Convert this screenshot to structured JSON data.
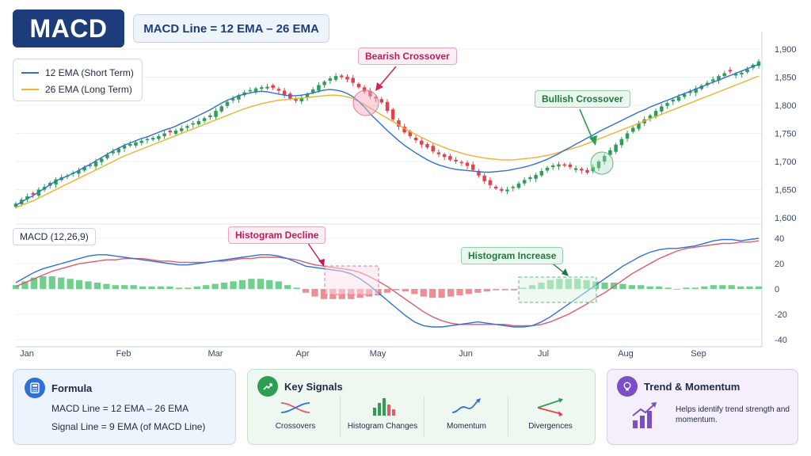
{
  "header": {
    "title": "MACD",
    "formula": "MACD Line = 12 EMA  –  26 EMA"
  },
  "legend": {
    "items": [
      {
        "label": "12 EMA (Short Term)",
        "color": "#2f6fd6"
      },
      {
        "label": "26 EMA (Long Term)",
        "color": "#f0b030"
      }
    ]
  },
  "annotations": {
    "bearish": "Bearish Crossover",
    "bullish": "Bullish Crossover",
    "hist_decline": "Histogram Decline",
    "hist_increase": "Histogram Increase"
  },
  "macd_panel": {
    "label": "MACD (12,26,9)"
  },
  "colors": {
    "up": "#2e9e55",
    "down": "#e0434f",
    "ema12": "#2f6fd6",
    "ema26": "#f0b030",
    "macd": "#2f6fd6",
    "signal": "#e05a6a",
    "hist_up": "#6fcf8c",
    "hist_down": "#ef8d95"
  },
  "chart_data": [
    {
      "type": "candlestick",
      "x_ticks": [
        "Jan",
        "Feb",
        "Mar",
        "Apr",
        "May",
        "Jun",
        "Jul",
        "Aug",
        "Sep"
      ],
      "y_ticks": [
        "1,900",
        "1,850",
        "1,800",
        "1,750",
        "1,700",
        "1,650",
        "1,600"
      ],
      "ylim": [
        1600,
        1900
      ],
      "close": [
        1625,
        1632,
        1638,
        1641,
        1650,
        1655,
        1662,
        1668,
        1672,
        1675,
        1680,
        1684,
        1690,
        1694,
        1700,
        1705,
        1712,
        1718,
        1723,
        1728,
        1731,
        1734,
        1737,
        1740,
        1742,
        1745,
        1750,
        1752,
        1755,
        1759,
        1763,
        1768,
        1772,
        1777,
        1782,
        1790,
        1798,
        1806,
        1812,
        1818,
        1823,
        1827,
        1830,
        1832,
        1833,
        1831,
        1826,
        1819,
        1812,
        1808,
        1813,
        1820,
        1828,
        1836,
        1842,
        1848,
        1852,
        1850,
        1846,
        1840,
        1832,
        1824,
        1816,
        1812,
        1805,
        1790,
        1775,
        1762,
        1752,
        1745,
        1738,
        1730,
        1725,
        1718,
        1713,
        1708,
        1703,
        1700,
        1697,
        1692,
        1685,
        1675,
        1665,
        1658,
        1652,
        1648,
        1650,
        1655,
        1661,
        1667,
        1672,
        1676,
        1683,
        1689,
        1693,
        1695,
        1693,
        1690,
        1688,
        1684,
        1680,
        1690,
        1700,
        1710,
        1720,
        1730,
        1740,
        1750,
        1760,
        1768,
        1775,
        1782,
        1790,
        1798,
        1804,
        1810,
        1815,
        1820,
        1825,
        1830,
        1835,
        1840,
        1846,
        1852,
        1857,
        1860,
        1856,
        1858,
        1864,
        1872,
        1878
      ],
      "ema12": [
        1622,
        1628,
        1634,
        1639,
        1646,
        1652,
        1659,
        1665,
        1670,
        1674,
        1679,
        1684,
        1690,
        1695,
        1701,
        1707,
        1713,
        1719,
        1724,
        1729,
        1733,
        1737,
        1741,
        1744,
        1748,
        1752,
        1756,
        1759,
        1763,
        1768,
        1772,
        1777,
        1782,
        1787,
        1792,
        1798,
        1804,
        1809,
        1813,
        1817,
        1820,
        1822,
        1824,
        1825,
        1824,
        1822,
        1820,
        1818,
        1817,
        1817,
        1818,
        1820,
        1822,
        1825,
        1827,
        1828,
        1827,
        1825,
        1821,
        1815,
        1807,
        1797,
        1785,
        1775,
        1765,
        1755,
        1746,
        1737,
        1729,
        1722,
        1715,
        1709,
        1703,
        1698,
        1694,
        1691,
        1688,
        1686,
        1685,
        1684,
        1683,
        1682,
        1681,
        1681,
        1682,
        1683,
        1684,
        1686,
        1688,
        1690,
        1693,
        1696,
        1700,
        1704,
        1709,
        1714,
        1720,
        1725,
        1731,
        1736,
        1742,
        1747,
        1753,
        1758,
        1763,
        1768,
        1773,
        1778,
        1783,
        1788,
        1792,
        1797,
        1801,
        1805,
        1809,
        1813,
        1817,
        1821,
        1825,
        1829,
        1833,
        1837,
        1841,
        1845,
        1849,
        1853,
        1857,
        1861,
        1865,
        1869,
        1873
      ],
      "ema26": [
        1618,
        1622,
        1626,
        1630,
        1635,
        1640,
        1645,
        1650,
        1655,
        1660,
        1665,
        1670,
        1675,
        1680,
        1685,
        1690,
        1695,
        1700,
        1705,
        1710,
        1714,
        1718,
        1722,
        1726,
        1730,
        1734,
        1738,
        1742,
        1746,
        1750,
        1754,
        1758,
        1762,
        1766,
        1770,
        1774,
        1778,
        1782,
        1786,
        1790,
        1794,
        1797,
        1800,
        1803,
        1805,
        1807,
        1809,
        1810,
        1811,
        1812,
        1813,
        1814,
        1815,
        1816,
        1817,
        1818,
        1818,
        1817,
        1815,
        1812,
        1807,
        1801,
        1795,
        1789,
        1783,
        1777,
        1771,
        1765,
        1759,
        1753,
        1748,
        1743,
        1738,
        1733,
        1729,
        1725,
        1721,
        1718,
        1715,
        1712,
        1710,
        1708,
        1706,
        1705,
        1704,
        1703,
        1703,
        1703,
        1704,
        1705,
        1706,
        1707,
        1709,
        1711,
        1713,
        1716,
        1719,
        1722,
        1725,
        1728,
        1732,
        1736,
        1740,
        1744,
        1748,
        1752,
        1756,
        1760,
        1764,
        1768,
        1772,
        1776,
        1780,
        1784,
        1788,
        1792,
        1796,
        1800,
        1804,
        1808,
        1812,
        1816,
        1820,
        1824,
        1828,
        1832,
        1836,
        1840,
        1844,
        1848,
        1852
      ]
    },
    {
      "type": "line",
      "name_macd": "MACD Line",
      "name_signal": "Signal Line",
      "y_ticks": [
        "40",
        "20",
        "0",
        "-20",
        "-40"
      ],
      "ylim": [
        -40,
        40
      ],
      "macd": [
        5,
        9,
        13,
        16,
        18,
        20,
        22,
        24,
        26,
        27,
        27,
        26,
        25,
        24,
        23,
        22,
        21,
        20,
        19,
        19,
        20,
        21,
        22,
        23,
        24,
        25,
        26,
        27,
        27,
        26,
        24,
        21,
        18,
        17,
        16,
        15,
        14,
        12,
        8,
        3,
        -3,
        -9,
        -15,
        -21,
        -26,
        -29,
        -30,
        -30,
        -29,
        -28,
        -27,
        -26,
        -27,
        -28,
        -29,
        -30,
        -30,
        -29,
        -26,
        -22,
        -17,
        -12,
        -7,
        -2,
        3,
        8,
        13,
        18,
        22,
        26,
        29,
        31,
        32,
        32,
        33,
        34,
        36,
        38,
        39,
        39,
        38,
        39,
        40
      ],
      "signal": [
        2,
        5,
        8,
        11,
        14,
        16,
        18,
        20,
        21,
        22,
        23,
        23,
        24,
        24,
        24,
        23,
        22,
        22,
        21,
        21,
        21,
        21,
        22,
        22,
        23,
        24,
        24,
        25,
        25,
        25,
        24,
        23,
        21,
        19,
        18,
        17,
        16,
        15,
        13,
        10,
        6,
        2,
        -3,
        -8,
        -13,
        -18,
        -22,
        -25,
        -27,
        -28,
        -28,
        -28,
        -28,
        -28,
        -28,
        -29,
        -29,
        -29,
        -28,
        -26,
        -23,
        -20,
        -16,
        -12,
        -7,
        -3,
        2,
        7,
        12,
        16,
        20,
        24,
        27,
        30,
        32,
        33,
        34,
        35,
        36,
        36,
        37,
        37,
        38
      ],
      "histogram": [
        3,
        6,
        9,
        10,
        10,
        9,
        8,
        7,
        6,
        5,
        4,
        3,
        3,
        3,
        2,
        2,
        2,
        2,
        1,
        1,
        2,
        3,
        4,
        5,
        6,
        7,
        8,
        8,
        7,
        6,
        3,
        1,
        -3,
        -6,
        -8,
        -8,
        -8,
        -8,
        -7,
        -6,
        -5,
        -3,
        -1,
        -2,
        -4,
        -6,
        -7,
        -7,
        -6,
        -5,
        -4,
        -3,
        -2,
        -1,
        -1,
        -1,
        1,
        3,
        5,
        7,
        8,
        8,
        8,
        7,
        6,
        5,
        5,
        4,
        3,
        3,
        2,
        2,
        1,
        0,
        1,
        1,
        2,
        3,
        3,
        3,
        2,
        2,
        2
      ]
    }
  ],
  "cards": {
    "formula": {
      "title": "Formula",
      "line1": "MACD Line  =  12 EMA  –  26 EMA",
      "line2": "Signal Line  =  9 EMA (of MACD Line)"
    },
    "signals": {
      "title": "Key Signals",
      "items": [
        "Crossovers",
        "Histogram Changes",
        "Momentum",
        "Divergences"
      ]
    },
    "trend": {
      "title": "Trend & Momentum",
      "text": "Helps identify trend strength and momentum."
    }
  }
}
